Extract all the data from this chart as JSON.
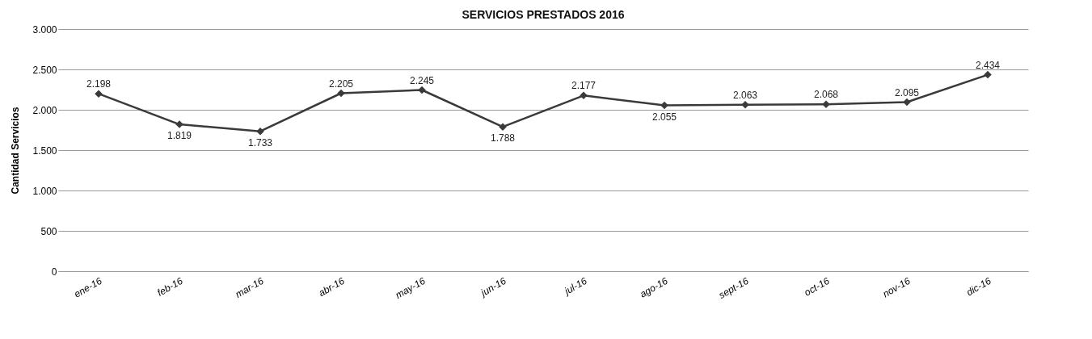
{
  "chart_data": {
    "type": "line",
    "title": "SERVICIOS PRESTADOS  2016",
    "ylabel": "Cantidad Servicios",
    "categories": [
      "ene-16",
      "feb-16",
      "mar-16",
      "abr-16",
      "may-16",
      "jun-16",
      "jul-16",
      "ago-16",
      "sept-16",
      "oct-16",
      "nov-16",
      "dic-16"
    ],
    "series": [
      {
        "color": "#3a3a3a",
        "values": [
          2198,
          1819,
          1733,
          2205,
          2245,
          1788,
          2177,
          2055,
          2063,
          2068,
          2095,
          2434
        ],
        "value_labels": [
          "2.198",
          "1.819",
          "1.733",
          "2.205",
          "2.245",
          "1.788",
          "2.177",
          "2.055",
          "2.063",
          "2.068",
          "2.095",
          "2.434"
        ]
      }
    ],
    "ylim": [
      0,
      3000
    ],
    "yticks": [
      {
        "value": 0,
        "label": "0"
      },
      {
        "value": 500,
        "label": "500"
      },
      {
        "value": 1000,
        "label": "1.000"
      },
      {
        "value": 1500,
        "label": "1.500"
      },
      {
        "value": 2000,
        "label": "2.000"
      },
      {
        "value": 2500,
        "label": "2.500"
      },
      {
        "value": 3000,
        "label": "3.000"
      }
    ],
    "grid": "y",
    "marker": "diamond",
    "line_style": "solid"
  }
}
